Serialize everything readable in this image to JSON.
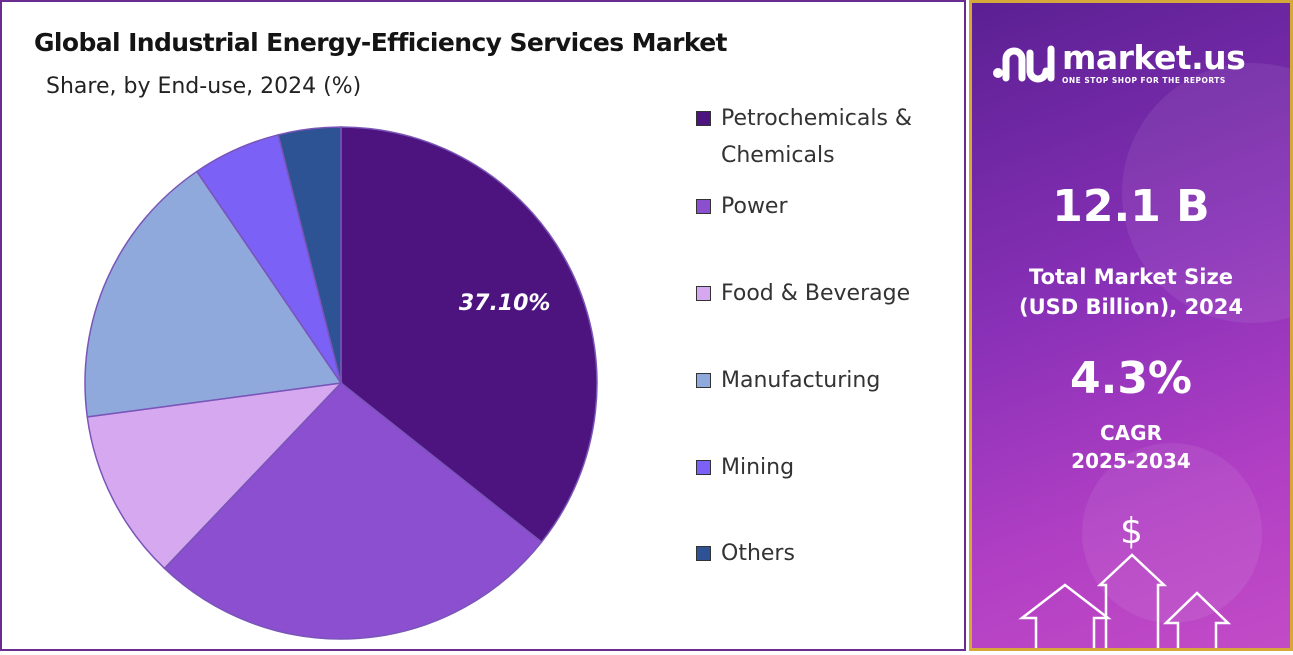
{
  "chart_data": {
    "type": "pie",
    "title": "Global Industrial Energy-Efficiency Services Market",
    "subtitle": "Share, by End-use, 2024 (%)",
    "categories": [
      "Petrochemicals & Chemicals",
      "Power",
      "Food & Beverage",
      "Manufacturing",
      "Mining",
      "Others"
    ],
    "values": [
      37.1,
      27.5,
      11.2,
      18.3,
      5.8,
      4.1
    ],
    "colors": [
      "#4d1480",
      "#8b4fd0",
      "#d5a8ef",
      "#8fa9dc",
      "#7b61f5",
      "#2e5394"
    ],
    "data_labels": [
      "37.10%",
      "",
      "",
      "",
      "",
      ""
    ],
    "legend_position": "right"
  },
  "sidebar": {
    "brand_name": "market.us",
    "brand_tagline": "ONE STOP SHOP FOR THE REPORTS",
    "market_size_value": "12.1 B",
    "market_size_label_line1": "Total Market Size",
    "market_size_label_line2": "(USD Billion), 2024",
    "cagr_value": "4.3%",
    "cagr_label_line1": "CAGR",
    "cagr_label_line2": "2025-2034",
    "dollar_symbol": "$",
    "logo_icon": "market-us-logo-icon",
    "growth_icon": "growth-arrows-icon"
  }
}
